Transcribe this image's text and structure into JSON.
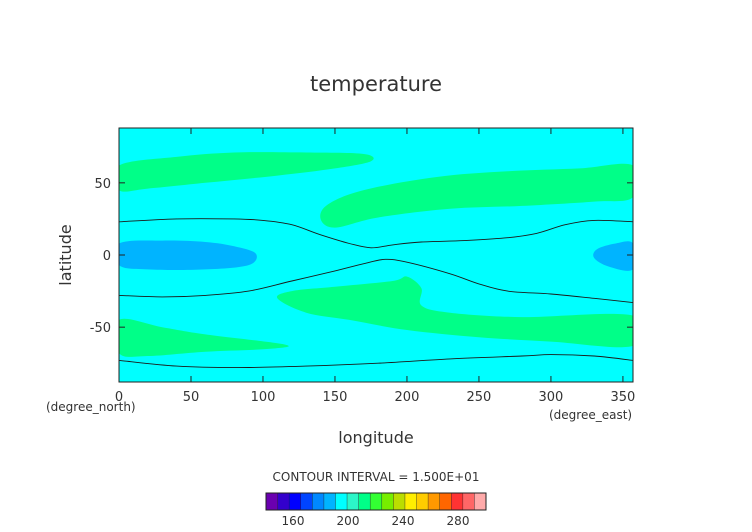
{
  "chart_data": {
    "type": "heatmap",
    "title": "temperature",
    "xlabel": "longitude",
    "ylabel": "latitude",
    "x_unit": "(degree_east)",
    "y_unit": "(degree_north)",
    "xlim": [
      0,
      357
    ],
    "ylim": [
      -88,
      88
    ],
    "xticks": [
      0,
      50,
      100,
      150,
      200,
      250,
      300,
      350
    ],
    "yticks": [
      50,
      0,
      -50
    ],
    "contour_interval_text": "CONTOUR INTERVAL = 1.500E+01",
    "colorbar": {
      "colors": [
        "#6a00b0",
        "#3300cc",
        "#0000ff",
        "#0044ff",
        "#0088ff",
        "#00b4ff",
        "#00ffff",
        "#2cf5c8",
        "#00ff88",
        "#33ff33",
        "#77ee00",
        "#bbdd00",
        "#ffee00",
        "#ffcc00",
        "#ff9900",
        "#ff6600",
        "#ff3333",
        "#ff6666",
        "#ffaaaa"
      ],
      "tick_labels": [
        "160",
        "200",
        "240",
        "280"
      ]
    },
    "fill_colors": {
      "background": "#00ffff",
      "warmer": "#00ff88",
      "colder": "#00b4ff"
    },
    "regions": [
      {
        "level": "warmer",
        "points": [
          [
            0,
            62
          ],
          [
            40,
            68
          ],
          [
            80,
            71
          ],
          [
            130,
            71
          ],
          [
            170,
            70
          ],
          [
            175,
            65
          ],
          [
            150,
            60
          ],
          [
            110,
            55
          ],
          [
            60,
            50
          ],
          [
            20,
            46
          ],
          [
            0,
            45
          ]
        ]
      },
      {
        "level": "warmer",
        "points": [
          [
            140,
            25
          ],
          [
            145,
            35
          ],
          [
            170,
            45
          ],
          [
            220,
            54
          ],
          [
            270,
            58
          ],
          [
            320,
            60
          ],
          [
            357,
            62
          ],
          [
            357,
            40
          ],
          [
            330,
            37
          ],
          [
            280,
            34
          ],
          [
            230,
            32
          ],
          [
            180,
            26
          ],
          [
            150,
            19
          ]
        ]
      },
      {
        "level": "warmer",
        "points": [
          [
            110,
            -30
          ],
          [
            120,
            -25
          ],
          [
            150,
            -22
          ],
          [
            190,
            -18
          ],
          [
            200,
            -15
          ],
          [
            210,
            -23
          ],
          [
            210,
            -35
          ],
          [
            230,
            -40
          ],
          [
            280,
            -43
          ],
          [
            357,
            -42
          ],
          [
            357,
            -63
          ],
          [
            300,
            -60
          ],
          [
            250,
            -57
          ],
          [
            200,
            -52
          ],
          [
            160,
            -45
          ],
          [
            130,
            -40
          ]
        ]
      },
      {
        "level": "warmer",
        "points": [
          [
            0,
            -45
          ],
          [
            30,
            -50
          ],
          [
            60,
            -55
          ],
          [
            115,
            -62
          ],
          [
            105,
            -65
          ],
          [
            60,
            -67
          ],
          [
            20,
            -70
          ],
          [
            0,
            -68
          ]
        ]
      },
      {
        "level": "colder",
        "points": [
          [
            0,
            8
          ],
          [
            30,
            10
          ],
          [
            60,
            9
          ],
          [
            80,
            6
          ],
          [
            95,
            1
          ],
          [
            90,
            -7
          ],
          [
            60,
            -10
          ],
          [
            20,
            -10
          ],
          [
            0,
            -7
          ]
        ]
      },
      {
        "level": "colder",
        "points": [
          [
            357,
            8
          ],
          [
            345,
            8
          ],
          [
            332,
            4
          ],
          [
            330,
            -2
          ],
          [
            340,
            -8
          ],
          [
            357,
            -10
          ]
        ]
      }
    ],
    "contours": [
      {
        "points": [
          [
            0,
            23
          ],
          [
            40,
            25
          ],
          [
            80,
            25
          ],
          [
            100,
            24
          ],
          [
            120,
            21
          ],
          [
            140,
            14
          ],
          [
            160,
            8
          ],
          [
            175,
            5
          ],
          [
            190,
            7
          ],
          [
            210,
            9
          ],
          [
            240,
            10
          ],
          [
            270,
            12
          ],
          [
            290,
            15
          ],
          [
            310,
            21
          ],
          [
            330,
            24
          ],
          [
            357,
            23
          ]
        ]
      },
      {
        "points": [
          [
            0,
            -28
          ],
          [
            30,
            -29
          ],
          [
            60,
            -28
          ],
          [
            90,
            -25
          ],
          [
            120,
            -18
          ],
          [
            150,
            -11
          ],
          [
            170,
            -6
          ],
          [
            185,
            -3
          ],
          [
            200,
            -5
          ],
          [
            230,
            -13
          ],
          [
            250,
            -20
          ],
          [
            270,
            -25
          ],
          [
            300,
            -27
          ],
          [
            330,
            -30
          ],
          [
            357,
            -33
          ]
        ]
      },
      {
        "points": [
          [
            0,
            -73
          ],
          [
            40,
            -77
          ],
          [
            80,
            -78
          ],
          [
            130,
            -77
          ],
          [
            180,
            -75
          ],
          [
            230,
            -72
          ],
          [
            280,
            -70
          ],
          [
            300,
            -69
          ],
          [
            330,
            -70
          ],
          [
            357,
            -73
          ]
        ]
      }
    ]
  }
}
